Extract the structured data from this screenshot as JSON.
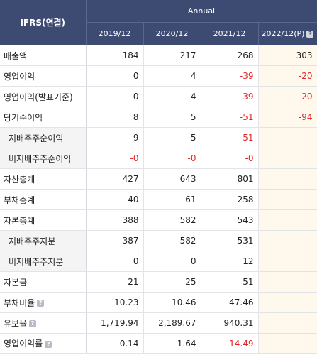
{
  "header": {
    "corner": "IFRS(연결)",
    "group": "Annual",
    "years": [
      "2019/12",
      "2020/12",
      "2021/12",
      "2022/12(P)"
    ]
  },
  "rows": [
    {
      "label": "매출액",
      "values": [
        "184",
        "217",
        "268",
        "303"
      ],
      "help": false
    },
    {
      "label": "영업이익",
      "values": [
        "0",
        "4",
        "-39",
        "-20"
      ],
      "help": false
    },
    {
      "label": "영업이익(발표기준)",
      "values": [
        "0",
        "4",
        "-39",
        "-20"
      ],
      "help": false
    },
    {
      "label": "당기순이익",
      "values": [
        "8",
        "5",
        "-51",
        "-94"
      ],
      "help": false
    },
    {
      "label": "지배주주순이익",
      "values": [
        "9",
        "5",
        "-51",
        ""
      ],
      "help": false
    },
    {
      "label": "비지배주주순이익",
      "values": [
        "-0",
        "-0",
        "-0",
        ""
      ],
      "help": false
    },
    {
      "label": "자산총계",
      "values": [
        "427",
        "643",
        "801",
        ""
      ],
      "help": false
    },
    {
      "label": "부채총계",
      "values": [
        "40",
        "61",
        "258",
        ""
      ],
      "help": false
    },
    {
      "label": "자본총계",
      "values": [
        "388",
        "582",
        "543",
        ""
      ],
      "help": false
    },
    {
      "label": "지배주주지분",
      "values": [
        "387",
        "582",
        "531",
        ""
      ],
      "help": false
    },
    {
      "label": "비지배주주지분",
      "values": [
        "0",
        "0",
        "12",
        ""
      ],
      "help": false
    },
    {
      "label": "자본금",
      "values": [
        "21",
        "25",
        "51",
        ""
      ],
      "help": false
    },
    {
      "label": "부채비율",
      "values": [
        "10.23",
        "10.46",
        "47.46",
        ""
      ],
      "help": true
    },
    {
      "label": "유보율",
      "values": [
        "1,719.94",
        "2,189.67",
        "940.31",
        ""
      ],
      "help": true
    },
    {
      "label": "영업이익률",
      "values": [
        "0.14",
        "1.64",
        "-14.49",
        ""
      ],
      "help": true
    }
  ],
  "help_icon": "question-icon",
  "colors": {
    "header_bg": "#3d4b72",
    "negative": "#e0282a",
    "projection_bg": "#fff8ec"
  }
}
